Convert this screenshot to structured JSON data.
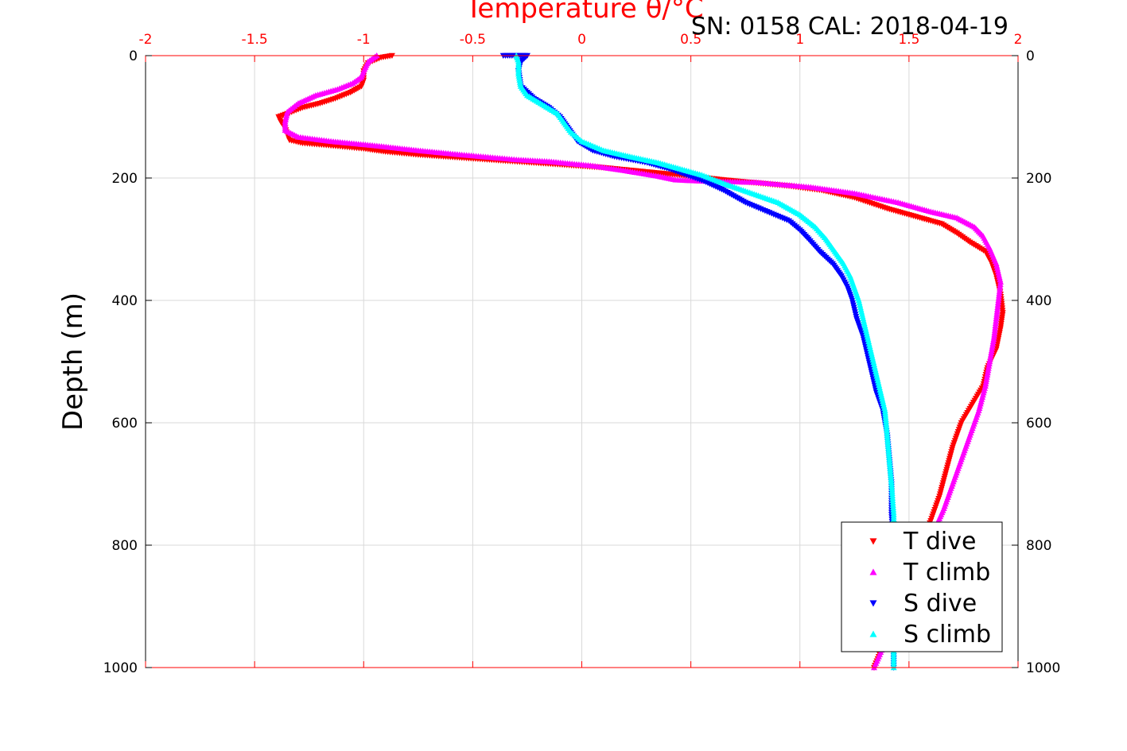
{
  "chart_data": {
    "type": "scatter",
    "title": "Temperature θ/°C",
    "subtitle": "SN: 0158  CAL: 2018-04-19",
    "ylabel": "Depth (m)",
    "xlim": [
      -2,
      2
    ],
    "ylim": [
      0,
      1000
    ],
    "y_reversed": true,
    "x_axis_position": "top",
    "x_ticks": [
      "-2",
      "-1.5",
      "-1",
      "-0.5",
      "0",
      "0.5",
      "1",
      "1.5",
      "2"
    ],
    "y_ticks": [
      "0",
      "200",
      "400",
      "600",
      "800",
      "1000"
    ],
    "grid": true,
    "legend_position": "bottom-right",
    "colors": {
      "axis_top": "#ff0000",
      "axis_side": "#000000",
      "grid": "#d9d9d9"
    },
    "series": [
      {
        "name": "T dive",
        "marker": "triangle-down",
        "color": "#ff0000",
        "points": [
          [
            -0.87,
            0
          ],
          [
            -0.92,
            3
          ],
          [
            -0.98,
            12
          ],
          [
            -1.0,
            25
          ],
          [
            -1.0,
            40
          ],
          [
            -1.01,
            50
          ],
          [
            -1.06,
            60
          ],
          [
            -1.13,
            70
          ],
          [
            -1.2,
            78
          ],
          [
            -1.28,
            85
          ],
          [
            -1.33,
            92
          ],
          [
            -1.39,
            100
          ],
          [
            -1.38,
            108
          ],
          [
            -1.36,
            118
          ],
          [
            -1.35,
            128
          ],
          [
            -1.34,
            138
          ],
          [
            -1.28,
            143
          ],
          [
            -1.15,
            147
          ],
          [
            -1.0,
            152
          ],
          [
            -0.9,
            157
          ],
          [
            -0.75,
            162
          ],
          [
            -0.55,
            167
          ],
          [
            -0.35,
            172
          ],
          [
            -0.1,
            178
          ],
          [
            0.1,
            183
          ],
          [
            0.3,
            190
          ],
          [
            0.5,
            197
          ],
          [
            0.65,
            203
          ],
          [
            0.8,
            208
          ],
          [
            0.95,
            213
          ],
          [
            1.1,
            220
          ],
          [
            1.25,
            232
          ],
          [
            1.4,
            250
          ],
          [
            1.55,
            265
          ],
          [
            1.65,
            275
          ],
          [
            1.72,
            290
          ],
          [
            1.78,
            305
          ],
          [
            1.85,
            320
          ],
          [
            1.88,
            340
          ],
          [
            1.9,
            360
          ],
          [
            1.92,
            390
          ],
          [
            1.93,
            420
          ],
          [
            1.92,
            445
          ],
          [
            1.9,
            480
          ],
          [
            1.86,
            510
          ],
          [
            1.84,
            540
          ],
          [
            1.79,
            570
          ],
          [
            1.74,
            600
          ],
          [
            1.7,
            640
          ],
          [
            1.67,
            680
          ],
          [
            1.64,
            720
          ],
          [
            1.6,
            760
          ],
          [
            1.55,
            800
          ],
          [
            1.5,
            850
          ],
          [
            1.45,
            900
          ],
          [
            1.4,
            950
          ],
          [
            1.34,
            1000
          ]
        ]
      },
      {
        "name": "T climb",
        "marker": "triangle-up",
        "color": "#ff00ff",
        "points": [
          [
            -0.94,
            0
          ],
          [
            -0.98,
            10
          ],
          [
            -1.0,
            25
          ],
          [
            -1.01,
            35
          ],
          [
            -1.05,
            45
          ],
          [
            -1.12,
            55
          ],
          [
            -1.22,
            65
          ],
          [
            -1.3,
            78
          ],
          [
            -1.35,
            92
          ],
          [
            -1.36,
            108
          ],
          [
            -1.36,
            122
          ],
          [
            -1.3,
            133
          ],
          [
            -1.15,
            140
          ],
          [
            -0.95,
            147
          ],
          [
            -0.75,
            155
          ],
          [
            -0.55,
            162
          ],
          [
            -0.3,
            170
          ],
          [
            -0.15,
            173
          ],
          [
            0.05,
            180
          ],
          [
            0.2,
            188
          ],
          [
            0.35,
            197
          ],
          [
            0.43,
            203
          ],
          [
            0.55,
            205
          ],
          [
            0.8,
            207
          ],
          [
            1.05,
            215
          ],
          [
            1.25,
            225
          ],
          [
            1.45,
            240
          ],
          [
            1.6,
            255
          ],
          [
            1.72,
            265
          ],
          [
            1.8,
            280
          ],
          [
            1.84,
            295
          ],
          [
            1.87,
            315
          ],
          [
            1.9,
            340
          ],
          [
            1.92,
            370
          ],
          [
            1.91,
            400
          ],
          [
            1.9,
            430
          ],
          [
            1.89,
            460
          ],
          [
            1.87,
            500
          ],
          [
            1.85,
            540
          ],
          [
            1.82,
            580
          ],
          [
            1.78,
            620
          ],
          [
            1.74,
            660
          ],
          [
            1.7,
            700
          ],
          [
            1.66,
            740
          ],
          [
            1.61,
            780
          ],
          [
            1.56,
            820
          ],
          [
            1.51,
            860
          ],
          [
            1.46,
            900
          ],
          [
            1.4,
            950
          ],
          [
            1.34,
            1000
          ]
        ]
      },
      {
        "name": "S dive",
        "marker": "triangle-down",
        "color": "#0000ff",
        "points": [
          [
            -0.36,
            0
          ],
          [
            -0.25,
            0
          ],
          [
            -0.28,
            10
          ],
          [
            -0.29,
            25
          ],
          [
            -0.28,
            50
          ],
          [
            -0.22,
            70
          ],
          [
            -0.15,
            85
          ],
          [
            -0.1,
            100
          ],
          [
            -0.06,
            120
          ],
          [
            -0.02,
            140
          ],
          [
            0.05,
            155
          ],
          [
            0.15,
            165
          ],
          [
            0.3,
            175
          ],
          [
            0.4,
            185
          ],
          [
            0.48,
            195
          ],
          [
            0.56,
            205
          ],
          [
            0.65,
            220
          ],
          [
            0.75,
            240
          ],
          [
            0.85,
            255
          ],
          [
            0.95,
            270
          ],
          [
            1.0,
            285
          ],
          [
            1.04,
            300
          ],
          [
            1.09,
            320
          ],
          [
            1.15,
            340
          ],
          [
            1.19,
            360
          ],
          [
            1.22,
            380
          ],
          [
            1.24,
            400
          ],
          [
            1.26,
            430
          ],
          [
            1.29,
            460
          ],
          [
            1.31,
            490
          ],
          [
            1.33,
            520
          ],
          [
            1.35,
            550
          ],
          [
            1.38,
            580
          ],
          [
            1.4,
            620
          ],
          [
            1.41,
            660
          ],
          [
            1.42,
            700
          ],
          [
            1.42,
            750
          ],
          [
            1.43,
            800
          ],
          [
            1.43,
            850
          ],
          [
            1.43,
            900
          ],
          [
            1.43,
            950
          ],
          [
            1.43,
            1000
          ]
        ]
      },
      {
        "name": "S climb",
        "marker": "triangle-up",
        "color": "#00ffff",
        "points": [
          [
            -0.3,
            0
          ],
          [
            -0.29,
            10
          ],
          [
            -0.29,
            30
          ],
          [
            -0.28,
            50
          ],
          [
            -0.25,
            65
          ],
          [
            -0.18,
            80
          ],
          [
            -0.11,
            95
          ],
          [
            -0.08,
            110
          ],
          [
            -0.05,
            125
          ],
          [
            0.0,
            140
          ],
          [
            0.1,
            155
          ],
          [
            0.22,
            165
          ],
          [
            0.35,
            175
          ],
          [
            0.45,
            185
          ],
          [
            0.55,
            195
          ],
          [
            0.66,
            210
          ],
          [
            0.78,
            225
          ],
          [
            0.9,
            240
          ],
          [
            1.0,
            260
          ],
          [
            1.07,
            280
          ],
          [
            1.12,
            300
          ],
          [
            1.16,
            320
          ],
          [
            1.2,
            340
          ],
          [
            1.23,
            360
          ],
          [
            1.25,
            380
          ],
          [
            1.27,
            400
          ],
          [
            1.29,
            430
          ],
          [
            1.31,
            460
          ],
          [
            1.33,
            490
          ],
          [
            1.35,
            520
          ],
          [
            1.37,
            550
          ],
          [
            1.39,
            580
          ],
          [
            1.4,
            620
          ],
          [
            1.41,
            660
          ],
          [
            1.42,
            700
          ],
          [
            1.43,
            750
          ],
          [
            1.43,
            800
          ],
          [
            1.43,
            850
          ],
          [
            1.43,
            900
          ],
          [
            1.43,
            950
          ],
          [
            1.43,
            1000
          ]
        ]
      }
    ]
  }
}
